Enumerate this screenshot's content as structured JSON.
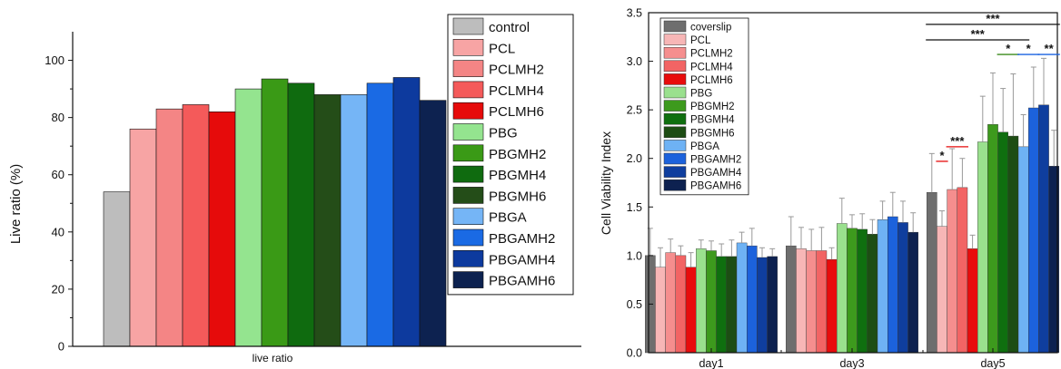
{
  "chart_data": [
    {
      "type": "bar",
      "categories": [
        "live ratio"
      ],
      "series": [
        {
          "name": "control",
          "values": [
            54
          ],
          "color": "#bdbdbd"
        },
        {
          "name": "PCL",
          "values": [
            76
          ],
          "color": "#f7a4a4"
        },
        {
          "name": "PCLMH2",
          "values": [
            83
          ],
          "color": "#f48585"
        },
        {
          "name": "PCLMH4",
          "values": [
            84.5
          ],
          "color": "#f45a5a"
        },
        {
          "name": "PCLMH6",
          "values": [
            82
          ],
          "color": "#e60b0b"
        },
        {
          "name": "PBG",
          "values": [
            90
          ],
          "color": "#94e48f"
        },
        {
          "name": "PBGMH2",
          "values": [
            93.5
          ],
          "color": "#3a9a16"
        },
        {
          "name": "PBGMH4",
          "values": [
            92
          ],
          "color": "#0f6b0f"
        },
        {
          "name": "PBGMH6",
          "values": [
            88
          ],
          "color": "#244d18"
        },
        {
          "name": "PBGA",
          "values": [
            88
          ],
          "color": "#75b5f6"
        },
        {
          "name": "PBGAMH2",
          "values": [
            92
          ],
          "color": "#1a6ae4"
        },
        {
          "name": "PBGAMH4",
          "values": [
            94
          ],
          "color": "#0d3a9e"
        },
        {
          "name": "PBGAMH6",
          "values": [
            86
          ],
          "color": "#0d2250"
        }
      ],
      "ylabel": "Live ratio (%)",
      "xlabel": "",
      "ylim": [
        0,
        110
      ],
      "yticks": [
        "0",
        "20",
        "40",
        "60",
        "80",
        "100"
      ],
      "legend": "right",
      "grid": false
    },
    {
      "type": "bar",
      "categories": [
        "day1",
        "day3",
        "day5"
      ],
      "series": [
        {
          "name": "coverslip",
          "values": [
            1.0,
            1.1,
            1.65
          ],
          "err": [
            0.28,
            0.3,
            0.4
          ],
          "color": "#6e6e6e"
        },
        {
          "name": "PCL",
          "values": [
            0.88,
            1.07,
            1.3
          ],
          "err": [
            0.2,
            0.22,
            0.16
          ],
          "color": "#f7b6b6"
        },
        {
          "name": "PCLMH2",
          "values": [
            1.03,
            1.05,
            1.68
          ],
          "err": [
            0.14,
            0.22,
            0.42
          ],
          "color": "#f58e8e"
        },
        {
          "name": "PCLMH4",
          "values": [
            1.0,
            1.05,
            1.7
          ],
          "err": [
            0.1,
            0.24,
            0.3
          ],
          "color": "#f26464"
        },
        {
          "name": "PCLMH6",
          "values": [
            0.88,
            0.96,
            1.07
          ],
          "err": [
            0.15,
            0.12,
            0.14
          ],
          "color": "#e80c0c"
        },
        {
          "name": "PBG",
          "values": [
            1.07,
            1.33,
            2.17
          ],
          "err": [
            0.09,
            0.26,
            0.47
          ],
          "color": "#9ae08e"
        },
        {
          "name": "PBGMH2",
          "values": [
            1.05,
            1.28,
            2.35
          ],
          "err": [
            0.1,
            0.14,
            0.53
          ],
          "color": "#3d9a1d"
        },
        {
          "name": "PBGMH4",
          "values": [
            0.99,
            1.27,
            2.27
          ],
          "err": [
            0.13,
            0.16,
            0.45
          ],
          "color": "#0f6f0f"
        },
        {
          "name": "PBGMH6",
          "values": [
            0.99,
            1.22,
            2.23
          ],
          "err": [
            0.17,
            0.15,
            0.64
          ],
          "color": "#1d4d14"
        },
        {
          "name": "PBGA",
          "values": [
            1.13,
            1.37,
            2.12
          ],
          "err": [
            0.11,
            0.19,
            0.33
          ],
          "color": "#6eb2f4"
        },
        {
          "name": "PBGAMH2",
          "values": [
            1.1,
            1.4,
            2.52
          ],
          "err": [
            0.18,
            0.25,
            0.42
          ],
          "color": "#1c62dc"
        },
        {
          "name": "PBGAMH4",
          "values": [
            0.98,
            1.34,
            2.55
          ],
          "err": [
            0.1,
            0.22,
            0.48
          ],
          "color": "#0f3e9e"
        },
        {
          "name": "PBGAMH6",
          "values": [
            0.99,
            1.24,
            1.92
          ],
          "err": [
            0.08,
            0.2,
            0.37
          ],
          "color": "#0d2150"
        }
      ],
      "ylabel": "Cell Viability Index",
      "xlabel": "",
      "ylim": [
        0,
        3.5
      ],
      "yticks": [
        "0.0",
        "0.5",
        "1.0",
        "1.5",
        "2.0",
        "2.5",
        "3.0",
        "3.5"
      ],
      "legend": "top-left",
      "grid": false,
      "annotations": [
        {
          "text": "*",
          "color": "#e60b0b",
          "x_from": "PCL",
          "x_to": "PCL",
          "y": 1.97
        },
        {
          "text": "***",
          "color": "#e60b0b",
          "x_from": "PCLMH2",
          "x_to": "PCLMH4",
          "y": 2.12
        },
        {
          "text": "*",
          "color": "#3a8a1c",
          "x_from": "PBGMH4",
          "x_to": "PBGMH6",
          "y": 3.07
        },
        {
          "text": "*",
          "color": "#1a62e0",
          "x_from": "PBGA",
          "x_to": "PBGAMH2",
          "y": 3.07
        },
        {
          "text": "**",
          "color": "#1a62e0",
          "x_from": "PBGAMH4",
          "x_to": "PBGAMH6",
          "y": 3.07
        },
        {
          "text": "***",
          "color": "#111111",
          "x_from": "coverslip",
          "x_to": "PBGAMH6",
          "y": 3.38
        },
        {
          "text": "***",
          "color": "#111111",
          "x_from": "coverslip",
          "x_to": "PBGA",
          "y": 3.22
        }
      ]
    }
  ]
}
